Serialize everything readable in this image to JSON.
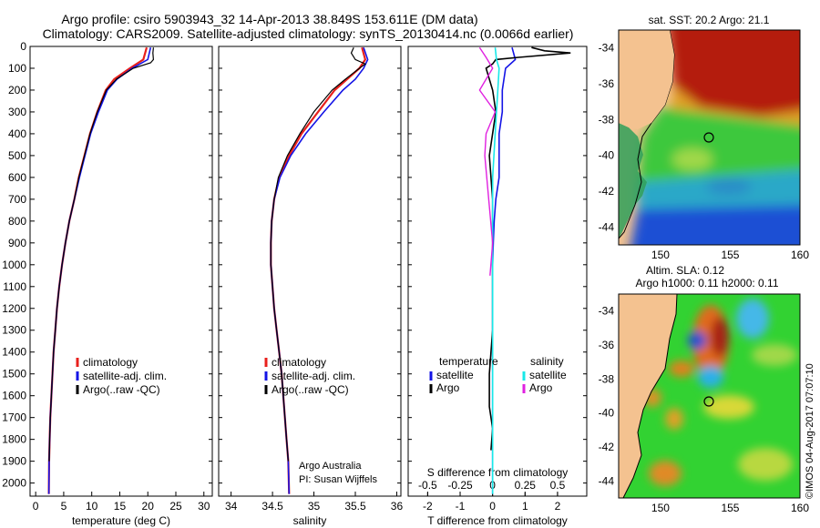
{
  "header": {
    "line1": "Argo profile: csiro 5903943_32 14-Apr-2013 38.849S 153.611E (DM data)",
    "line2": "Climatology: CARS2009. Satellite-adjusted climatology: synTS_20130414.nc (0.0066d earlier)"
  },
  "colors": {
    "climatology": "#e8201c",
    "satellite": "#1414e6",
    "argo": "#000000",
    "salinity_satellite": "#18e8e8",
    "salinity_argo": "#e020e0",
    "land": "#f4c290"
  },
  "chart_data": [
    {
      "type": "line",
      "id": "temperature",
      "xlabel": "temperature (deg C)",
      "ylabel": "depth",
      "xlim": [
        -1,
        31.5
      ],
      "ylim": [
        2060,
        0
      ],
      "xticks": [
        0,
        5,
        10,
        15,
        20,
        25,
        30
      ],
      "yticks": [
        0,
        100,
        200,
        300,
        400,
        500,
        600,
        700,
        800,
        900,
        1000,
        1100,
        1200,
        1300,
        1400,
        1500,
        1600,
        1700,
        1800,
        1900,
        2000
      ],
      "legend": [
        "climatology",
        "satellite-adj. clim.",
        "Argo(..raw -QC)"
      ],
      "legend_position": "bottom-middle",
      "series": [
        {
          "name": "climatology",
          "x": [
            19.8,
            19.2,
            16.8,
            14.0,
            12.5,
            11.0,
            9.7,
            8.7,
            7.7,
            6.9,
            6.0,
            5.3,
            4.7,
            4.2,
            3.8,
            3.5,
            3.2,
            3.0,
            2.8,
            2.6,
            2.5,
            2.4,
            2.35
          ],
          "y": [
            5,
            60,
            100,
            150,
            200,
            300,
            400,
            500,
            600,
            700,
            800,
            900,
            1000,
            1100,
            1200,
            1300,
            1400,
            1500,
            1600,
            1700,
            1800,
            1900,
            2050
          ]
        },
        {
          "name": "satellite-adj. clim.",
          "x": [
            20.5,
            20.0,
            17.2,
            14.5,
            12.8,
            11.2,
            9.8,
            8.8,
            7.8,
            6.9,
            6.0,
            5.3,
            4.7,
            4.2,
            3.8,
            3.5,
            3.2,
            3.0,
            2.8,
            2.6,
            2.5,
            2.4,
            2.35
          ],
          "y": [
            5,
            60,
            100,
            150,
            200,
            300,
            400,
            500,
            600,
            700,
            800,
            900,
            1000,
            1100,
            1200,
            1300,
            1400,
            1500,
            1600,
            1700,
            1800,
            1900,
            2050
          ]
        },
        {
          "name": "Argo",
          "x": [
            21.0,
            20.9,
            21.0,
            20.5,
            17.4,
            14.4,
            12.6,
            11.0,
            9.7,
            8.7,
            7.7,
            6.9,
            6.0,
            5.3,
            4.7,
            4.2,
            3.8,
            3.5,
            3.2,
            3.0,
            2.8,
            2.6,
            2.5,
            2.4
          ],
          "y": [
            5,
            30,
            60,
            75,
            100,
            150,
            200,
            300,
            400,
            500,
            600,
            700,
            800,
            900,
            1000,
            1100,
            1200,
            1300,
            1400,
            1500,
            1600,
            1700,
            1800,
            1900
          ]
        }
      ]
    },
    {
      "type": "line",
      "id": "salinity",
      "xlabel": "salinity",
      "xlim": [
        33.85,
        36.05
      ],
      "ylim": [
        2060,
        0
      ],
      "xticks": [
        34,
        34.5,
        35,
        35.5,
        36
      ],
      "legend": [
        "climatology",
        "satellite-adj. clim.",
        "Argo(..raw -QC)"
      ],
      "legend_position": "bottom-middle",
      "annotations": [
        "Argo Australia",
        "PI: Susan Wijffels"
      ],
      "series": [
        {
          "name": "climatology",
          "x": [
            35.58,
            35.62,
            35.55,
            35.4,
            35.25,
            35.05,
            34.85,
            34.7,
            34.58,
            34.52,
            34.49,
            34.48,
            34.48,
            34.5,
            34.52,
            34.55,
            34.58,
            34.61,
            34.63,
            34.65,
            34.67,
            34.69,
            34.7
          ],
          "y": [
            5,
            60,
            100,
            150,
            200,
            300,
            400,
            500,
            600,
            700,
            800,
            900,
            1000,
            1100,
            1200,
            1300,
            1400,
            1500,
            1600,
            1700,
            1800,
            1900,
            2050
          ]
        },
        {
          "name": "satellite-adj. clim.",
          "x": [
            35.6,
            35.65,
            35.6,
            35.5,
            35.35,
            35.12,
            34.9,
            34.72,
            34.59,
            34.52,
            34.49,
            34.48,
            34.48,
            34.5,
            34.52,
            34.55,
            34.58,
            34.61,
            34.63,
            34.65,
            34.67,
            34.69,
            34.7
          ],
          "y": [
            5,
            60,
            100,
            150,
            200,
            300,
            400,
            500,
            600,
            700,
            800,
            900,
            1000,
            1100,
            1200,
            1300,
            1400,
            1500,
            1600,
            1700,
            1800,
            1900,
            2050
          ]
        },
        {
          "name": "Argo",
          "x": [
            35.48,
            35.45,
            35.5,
            35.62,
            35.55,
            35.38,
            35.22,
            35.0,
            34.83,
            34.68,
            34.57,
            34.52,
            34.49,
            34.48,
            34.48,
            34.5,
            34.52,
            34.55,
            34.58,
            34.61,
            34.63,
            34.65,
            34.67,
            34.69
          ],
          "y": [
            5,
            30,
            60,
            80,
            100,
            150,
            200,
            300,
            400,
            500,
            600,
            700,
            800,
            900,
            1000,
            1100,
            1200,
            1300,
            1400,
            1500,
            1600,
            1700,
            1800,
            1900
          ]
        }
      ]
    },
    {
      "type": "line",
      "id": "difference",
      "xlabel": "T difference from climatology",
      "xlabel_top": "S difference from climatology",
      "xlim": [
        -2.6,
        2.9
      ],
      "ylim": [
        2060,
        0
      ],
      "xticks_T": [
        -2,
        -1,
        0,
        1,
        2
      ],
      "xticks_S": [
        -0.5,
        -0.25,
        0,
        0.25,
        0.5
      ],
      "xticks_S_labels": [
        "-0.5",
        "-0.25",
        "0",
        "0.25",
        "0.5"
      ],
      "legend_headers": [
        "temperature",
        "salinity"
      ],
      "legend": [
        "satellite",
        "Argo",
        "satellite",
        "Argo"
      ],
      "series": [
        {
          "name": "temperature satellite",
          "x": [
            0.6,
            0.7,
            0.4,
            0.3,
            0.3,
            0.2,
            0.2,
            0.2,
            0.1,
            0.05,
            0.02,
            0.0,
            0.0,
            0.0,
            0.0,
            0.0,
            0.0,
            0.0,
            0.0
          ],
          "y": [
            5,
            60,
            100,
            200,
            300,
            400,
            500,
            600,
            700,
            800,
            900,
            1000,
            1100,
            1200,
            1400,
            1600,
            1700,
            1800,
            2050
          ]
        },
        {
          "name": "temperature Argo",
          "x": [
            1.2,
            1.6,
            2.4,
            0.8,
            0.1,
            0.0,
            -0.2,
            0.0,
            0.1,
            -0.1,
            0.0,
            0.0,
            0.0,
            0.0,
            -0.1,
            -0.1,
            0.0,
            -0.05
          ],
          "y": [
            5,
            20,
            30,
            50,
            60,
            80,
            100,
            200,
            300,
            500,
            700,
            900,
            1100,
            1300,
            1500,
            1650,
            1750,
            1850
          ]
        },
        {
          "name": "salinity satellite",
          "x": [
            0.02,
            0.03,
            0.05,
            0.04,
            0.03,
            0.02,
            0.01,
            0.0,
            0.0,
            0.0,
            0.0,
            0.0,
            0.0,
            0.0
          ],
          "y": [
            5,
            60,
            100,
            200,
            300,
            400,
            500,
            600,
            700,
            800,
            1000,
            1400,
            1800,
            2050
          ]
        },
        {
          "name": "salinity Argo",
          "x": [
            -0.1,
            -0.05,
            0.0,
            -0.05,
            -0.1,
            0.02,
            -0.05,
            -0.06,
            -0.03,
            0.0,
            -0.02
          ],
          "y": [
            5,
            50,
            100,
            150,
            200,
            300,
            400,
            500,
            700,
            900,
            1050
          ]
        }
      ]
    },
    {
      "type": "heatmap",
      "id": "sst-map",
      "title": "sat. SST: 20.2  Argo: 21.1",
      "xlim": [
        147,
        160
      ],
      "ylim": [
        -45,
        -33
      ],
      "xticks": [
        150,
        155,
        160
      ],
      "yticks": [
        -34,
        -36,
        -38,
        -40,
        -42,
        -44
      ],
      "marker": {
        "lon": 153.611,
        "lat": -38.849
      }
    },
    {
      "type": "heatmap",
      "id": "sla-map",
      "title_line1": "Altim. SLA: 0.12",
      "title_line2": "Argo h1000: 0.11  h2000: 0.11",
      "xlim": [
        147,
        160
      ],
      "ylim": [
        -45,
        -33
      ],
      "xticks": [
        150,
        155,
        160
      ],
      "yticks": [
        -34,
        -36,
        -38,
        -40,
        -42,
        -44
      ],
      "marker": {
        "lon": 153.611,
        "lat": -38.849
      }
    }
  ],
  "footer": {
    "credit": "©IMOS 04-Aug-2017 07:07:10"
  }
}
